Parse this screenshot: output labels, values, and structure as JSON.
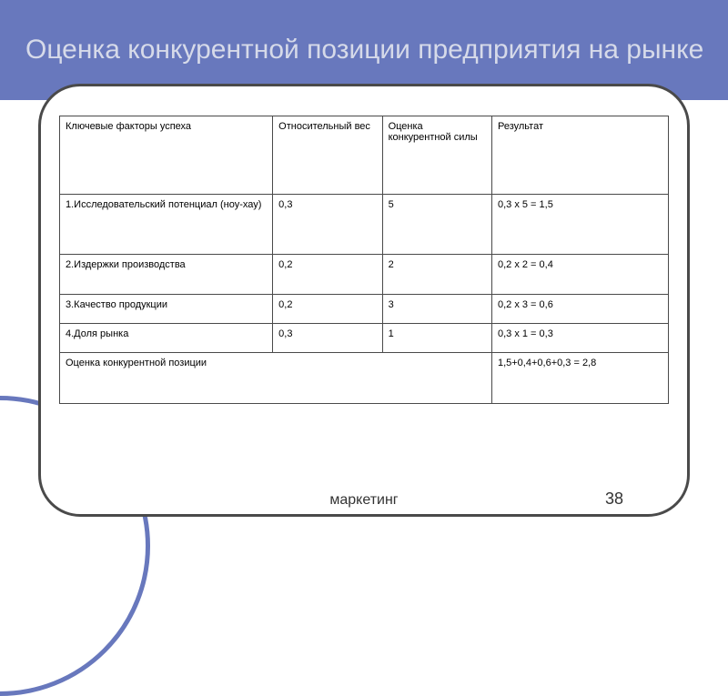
{
  "slide": {
    "title": "Оценка конкурентной позиции предприятия на рынке",
    "footer_label": "маркетинг",
    "page_number": "38"
  },
  "table": {
    "columns": [
      "Ключевые факторы успеха",
      "Относительный вес",
      "Оценка конкурентной силы",
      "Результат"
    ],
    "rows": [
      {
        "factor": "1.Исследовательский потенциал (ноу-хау)",
        "weight": "0,3",
        "score": "5",
        "result": "0,3 х 5 = 1,5",
        "height": "row-tall"
      },
      {
        "factor": "2.Издержки производства",
        "weight": "0,2",
        "score": "2",
        "result": "0,2 х 2 = 0,4",
        "height": "row-med"
      },
      {
        "factor": "3.Качество продукции",
        "weight": "0,2",
        "score": "3",
        "result": "0,2 х 3 = 0,6",
        "height": "row-short"
      },
      {
        "factor": "4.Доля рынка",
        "weight": "0,3",
        "score": "1",
        "result": "0,3 х 1 = 0,3",
        "height": "row-short"
      }
    ],
    "footer": {
      "label": "Оценка конкурентной позиции",
      "result": "1,5+0,4+0,6+0,3 = 2,8"
    }
  },
  "colors": {
    "title_bg": "#6878bd",
    "title_text": "#d6dae9",
    "frame_border": "#4a4a4a",
    "cell_border": "#4a4a4a",
    "text": "#000000",
    "footer_text": "#333333",
    "background": "#ffffff"
  }
}
